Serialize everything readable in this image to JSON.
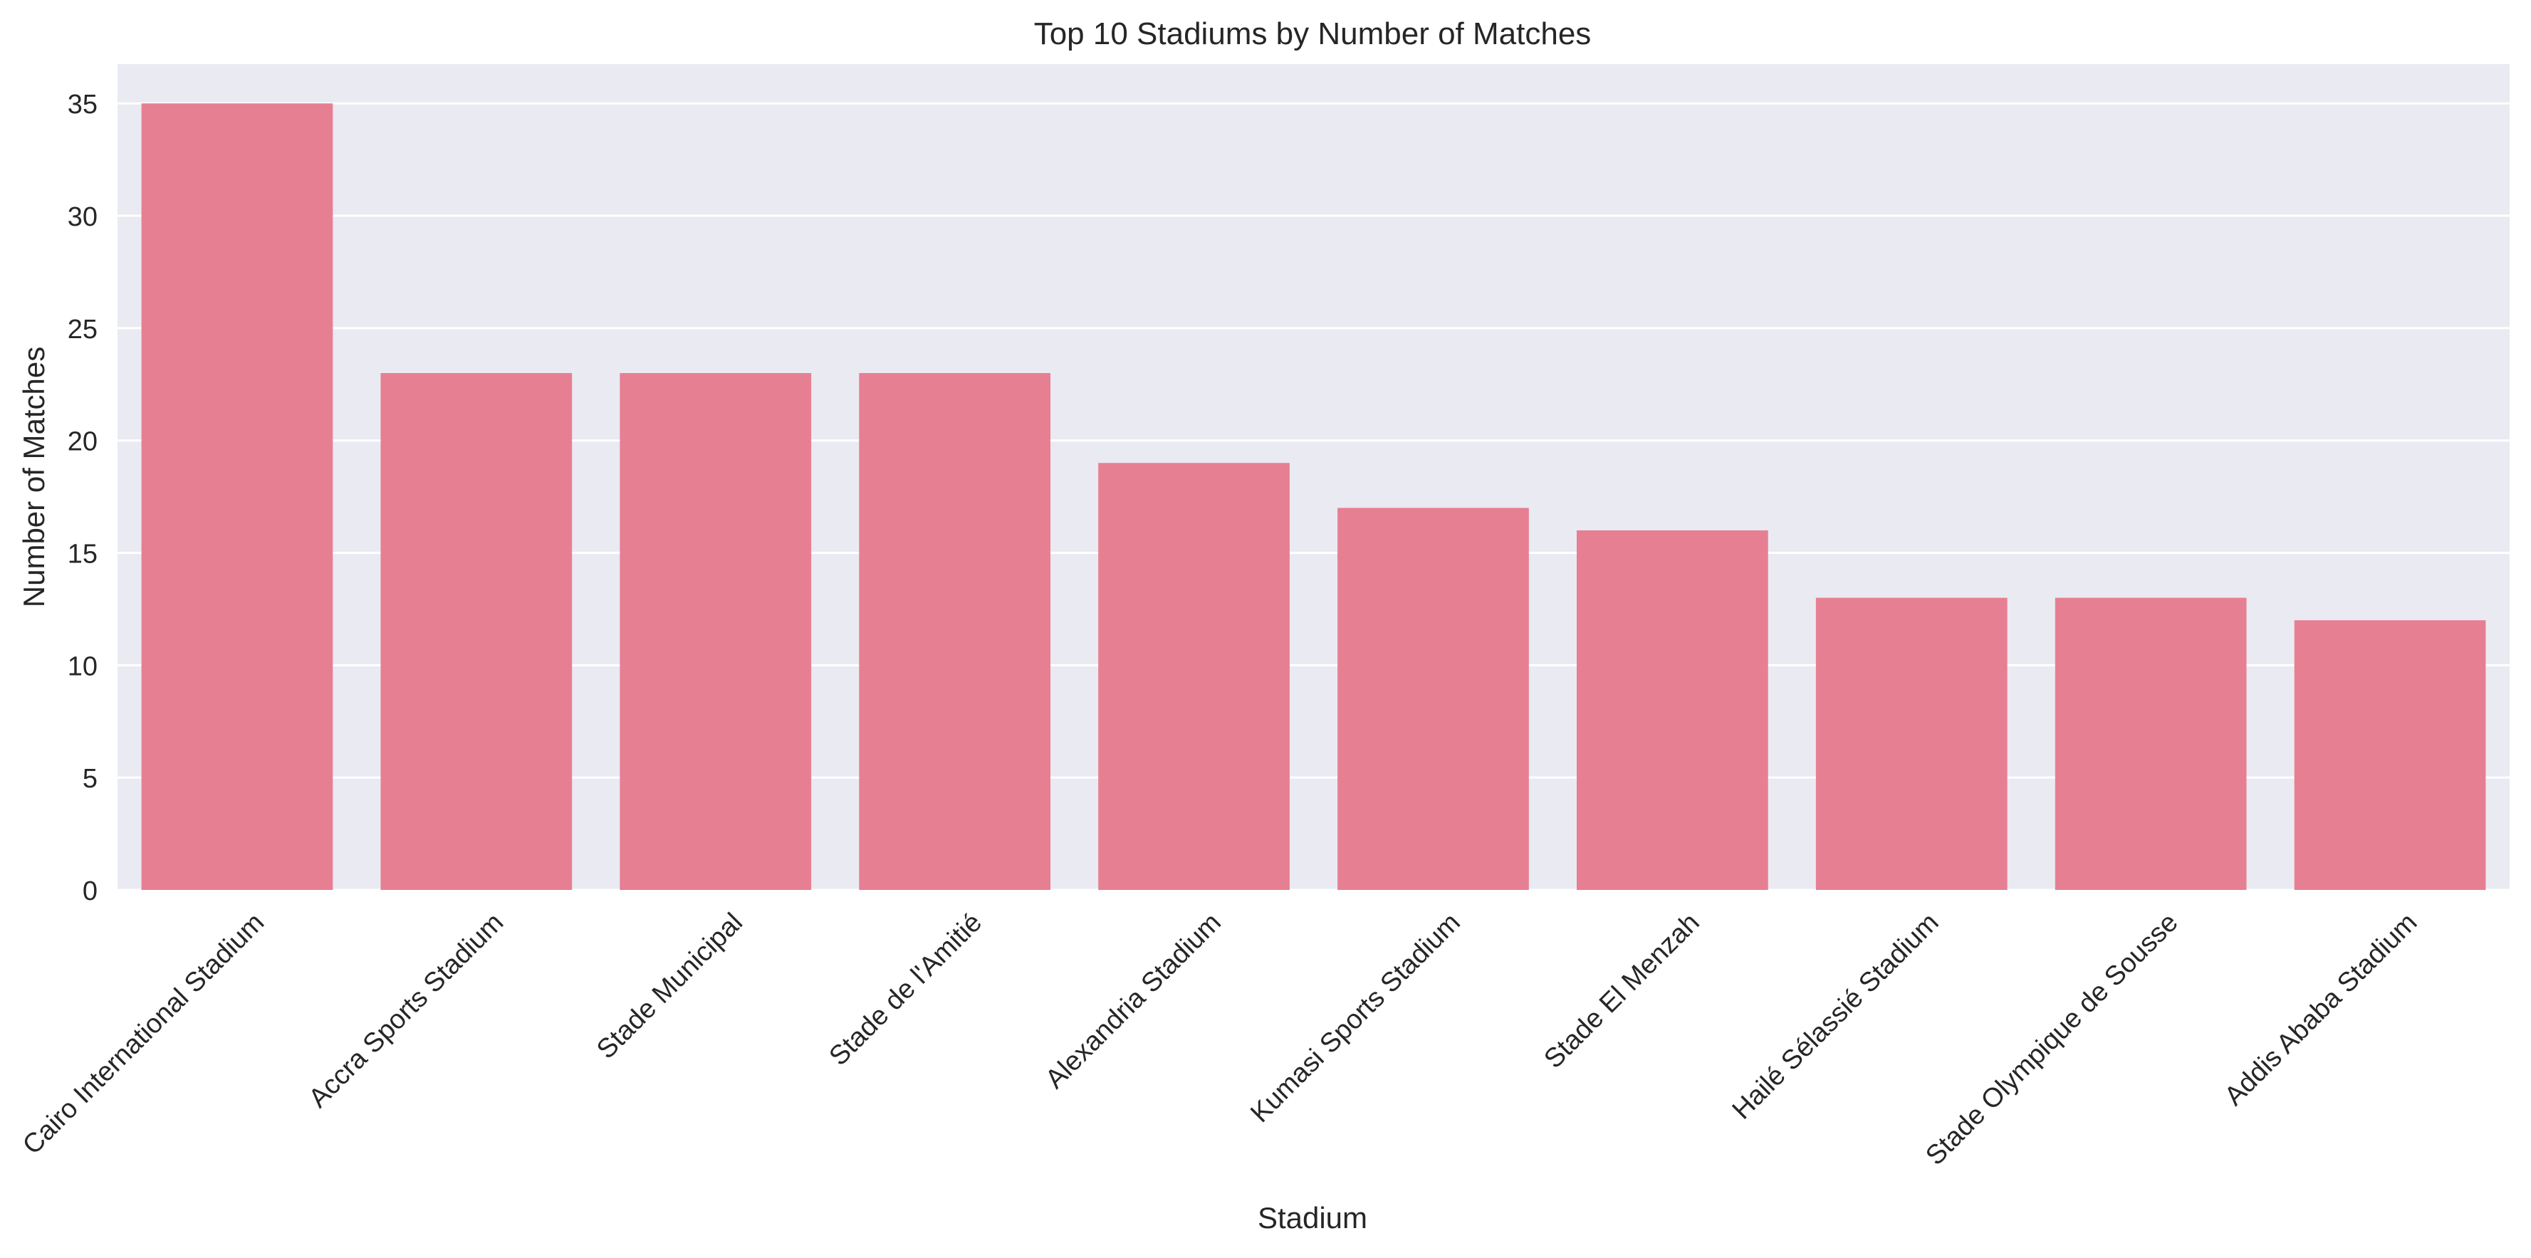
{
  "chart_data": {
    "type": "bar",
    "title": "Top 10 Stadiums by Number of Matches",
    "xlabel": "Stadium",
    "ylabel": "Number of Matches",
    "categories": [
      "Cairo International Stadium",
      "Accra Sports Stadium",
      "Stade Municipal",
      "Stade de l'Amitié",
      "Alexandria Stadium",
      "Kumasi Sports Stadium",
      "Stade El Menzah",
      "Hailé Sélassié Stadium",
      "Stade Olympique de Sousse",
      "Addis Ababa Stadium"
    ],
    "values": [
      35,
      23,
      23,
      23,
      19,
      17,
      16,
      13,
      13,
      12
    ],
    "ylim": [
      0,
      36.75
    ],
    "yticks": [
      0,
      5,
      10,
      15,
      20,
      25,
      30,
      35
    ],
    "grid": true,
    "colors": {
      "bar": "#e77f92",
      "plot_background": "#eaeaf2",
      "gridline": "#ffffff",
      "text": "#262626"
    }
  }
}
